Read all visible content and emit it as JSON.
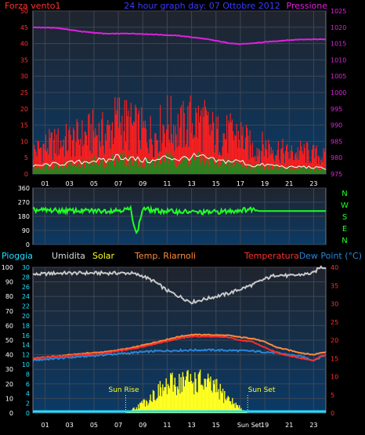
{
  "colors": {
    "background": "#000000",
    "plot_bg_top": "#20242d",
    "plot_bg_bottom": "#0b3a66",
    "grid": "#3d4654",
    "frame": "#6f7686",
    "wind_gust": "#ff1e1e",
    "wind_avg": "#1f8a1f",
    "wind_line": "#ffffff",
    "pressure": "#e020e0",
    "direction": "#22ff22",
    "humidity": "#c9c9c9",
    "temperature": "#ff2a2a",
    "heat_index": "#ff8a3a",
    "dew_point": "#2a86d8",
    "solar": "#ffff22",
    "rain": "#22e0ff",
    "title": "#3a3aff"
  },
  "header": {
    "left": "Forza vento1",
    "title": "24 hour graph day: 07 Ottobre 2012",
    "right": "Pressione"
  },
  "legend": {
    "rain": "Pioggia",
    "humidity": "Umidita",
    "solar": "Solar",
    "heat_index": "Temp. Riarnoli",
    "temperature": "Temperatura",
    "dew_point": "Dew Point (°C)"
  },
  "annotations": {
    "sun_rise": "Sun Rise",
    "sun_set": "Sun Set",
    "sun_set_axis": "Sun Set"
  },
  "direction_axis": [
    "N",
    "W",
    "S",
    "E",
    "N"
  ],
  "chart_data": [
    {
      "type": "area",
      "name": "wind-pressure",
      "x": [
        "01",
        "03",
        "05",
        "07",
        "09",
        "11",
        "13",
        "15",
        "17",
        "19",
        "21",
        "23"
      ],
      "ylim_left": [
        0,
        50
      ],
      "yticks_left": [
        0,
        5,
        10,
        15,
        20,
        25,
        30,
        35,
        40,
        45,
        50
      ],
      "ylim_right": [
        975,
        1025
      ],
      "yticks_right": [
        975,
        980,
        985,
        990,
        995,
        1000,
        1005,
        1010,
        1015,
        1020,
        1025
      ],
      "series": [
        {
          "name": "Pressione",
          "x": [
            0,
            2,
            4,
            6,
            8,
            10,
            12,
            14,
            16,
            17,
            18,
            20,
            22,
            24
          ],
          "values": [
            1020,
            1019.8,
            1018.7,
            1018,
            1018.1,
            1017.8,
            1017.4,
            1016.5,
            1015.2,
            1014.8,
            1015.1,
            1015.8,
            1016.3,
            1016.3
          ]
        },
        {
          "name": "Forza vento1",
          "x": [
            0,
            1,
            2,
            3,
            4,
            5,
            6,
            7,
            8,
            9,
            10,
            11,
            12,
            13,
            14,
            15,
            16,
            17,
            18,
            19,
            20,
            21,
            22,
            23,
            24
          ],
          "values": [
            8,
            10,
            11,
            12,
            13,
            15,
            14,
            20,
            17,
            15,
            14,
            19,
            16,
            19,
            18,
            14,
            14,
            14,
            9,
            10,
            9,
            7,
            8,
            7,
            6
          ]
        }
      ]
    },
    {
      "type": "line",
      "name": "wind-direction",
      "x": [
        "01",
        "03",
        "05",
        "07",
        "09",
        "11",
        "13",
        "15",
        "17",
        "19",
        "21",
        "23"
      ],
      "ylim": [
        0,
        360
      ],
      "yticks": [
        0,
        90,
        180,
        270,
        360
      ],
      "series": [
        {
          "name": "direction",
          "x": [
            0,
            3,
            6,
            8,
            8.5,
            9,
            10,
            12,
            14,
            16,
            17,
            18,
            18.5,
            24
          ],
          "values": [
            220,
            215,
            215,
            225,
            60,
            230,
            215,
            210,
            205,
            212,
            220,
            226,
            214,
            214
          ]
        }
      ]
    },
    {
      "type": "line",
      "name": "temperature-humidity",
      "x": [
        "01",
        "03",
        "05",
        "07",
        "09",
        "11",
        "13",
        "15",
        "17",
        "19",
        "21",
        "23"
      ],
      "ylim_left": [
        0,
        100
      ],
      "yticks_left": [
        0,
        10,
        20,
        30,
        40,
        50,
        60,
        70,
        80,
        90,
        100
      ],
      "ylim_mid": [
        0,
        30
      ],
      "yticks_mid": [
        0,
        2,
        4,
        6,
        8,
        10,
        12,
        14,
        16,
        18,
        20,
        22,
        24,
        26,
        28,
        30
      ],
      "ylim_right": [
        0,
        40
      ],
      "yticks_right": [
        0,
        5,
        10,
        15,
        20,
        25,
        30,
        35,
        40
      ],
      "series": [
        {
          "name": "Umidita",
          "x": [
            0,
            2,
            4,
            6,
            8,
            9,
            10,
            11,
            12,
            13,
            14,
            15,
            16,
            17,
            18,
            19,
            20,
            21,
            22,
            23,
            23.5,
            24
          ],
          "values": [
            95,
            96,
            96,
            96,
            96,
            94,
            90,
            84,
            80,
            76,
            78,
            80,
            82,
            85,
            88,
            92,
            95,
            94,
            95,
            96,
            100,
            100
          ]
        },
        {
          "name": "Temperatura",
          "x": [
            0,
            2,
            4,
            6,
            8,
            10,
            12,
            13,
            14,
            16,
            17,
            18,
            19,
            20,
            22,
            23,
            23.5,
            24
          ],
          "values": [
            15,
            15.5,
            16,
            16.5,
            17.5,
            19,
            20.5,
            21,
            21,
            20.8,
            20,
            19.5,
            18,
            16.5,
            15,
            14.5,
            15.5,
            16
          ]
        },
        {
          "name": "Temp. Riarnoli",
          "x": [
            0,
            2,
            4,
            6,
            8,
            10,
            12,
            13,
            14,
            16,
            17,
            18,
            19,
            20,
            22,
            23,
            23.5,
            24
          ],
          "values": [
            15,
            15.6,
            16.3,
            16.8,
            17.8,
            19.4,
            21,
            21.5,
            21.5,
            21.3,
            20.8,
            20.5,
            19.5,
            18,
            16.5,
            16,
            16.5,
            16.8
          ]
        },
        {
          "name": "Dew Point (°C)",
          "x": [
            0,
            2,
            4,
            6,
            8,
            10,
            12,
            14,
            16,
            18,
            20,
            22,
            23,
            24
          ],
          "values": [
            14.5,
            15,
            15.5,
            16,
            16.5,
            17,
            17.2,
            17.3,
            17.2,
            17,
            16.5,
            15.5,
            14.5,
            16
          ]
        },
        {
          "name": "Solar",
          "x": [
            7.6,
            8,
            9,
            10,
            11,
            12,
            13,
            14,
            15,
            16,
            17,
            17.6
          ],
          "values": [
            0,
            2,
            8,
            16,
            22,
            26,
            27,
            25,
            20,
            12,
            4,
            0
          ]
        }
      ],
      "sun_rise_hour": 7.6,
      "sun_set_hour": 17.6
    }
  ]
}
